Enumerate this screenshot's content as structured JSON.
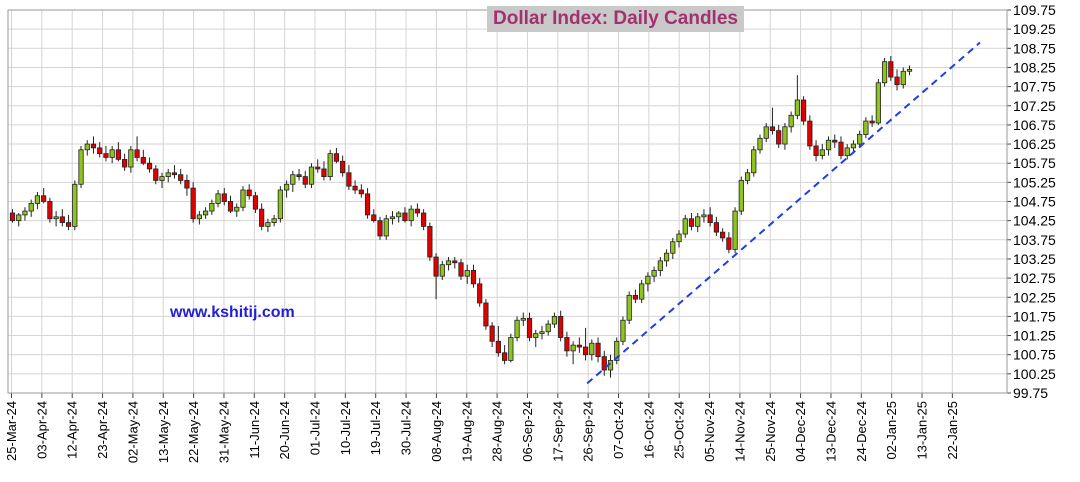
{
  "chart_data": {
    "type": "candlestick",
    "title": "Dollar Index: Daily Candles",
    "watermark": "www.kshitij.com",
    "xlabel": "",
    "ylabel": "",
    "ylim": [
      99.75,
      109.75
    ],
    "y_ticks": [
      "109.75",
      "109.25",
      "108.75",
      "108.25",
      "107.75",
      "107.25",
      "106.75",
      "106.25",
      "105.75",
      "105.25",
      "104.75",
      "104.25",
      "103.75",
      "103.25",
      "102.75",
      "102.25",
      "101.75",
      "101.25",
      "100.75",
      "100.25",
      "99.75"
    ],
    "x_ticks": [
      "25-Mar-24",
      "03-Apr-24",
      "12-Apr-24",
      "23-Apr-24",
      "02-May-24",
      "13-May-24",
      "22-May-24",
      "31-May-24",
      "11-Jun-24",
      "20-Jun-24",
      "01-Jul-24",
      "10-Jul-24",
      "19-Jul-24",
      "30-Jul-24",
      "08-Aug-24",
      "19-Aug-24",
      "28-Aug-24",
      "06-Sep-24",
      "17-Sep-24",
      "26-Sep-24",
      "07-Oct-24",
      "16-Oct-24",
      "25-Oct-24",
      "05-Nov-24",
      "14-Nov-24",
      "25-Nov-24",
      "04-Dec-24",
      "13-Dec-24",
      "24-Dec-24",
      "02-Jan-25",
      "13-Jan-25",
      "22-Jan-25"
    ],
    "grid": true,
    "colors": {
      "up": "#8fc31f",
      "down": "#e00000",
      "trendline": "#1f3fe0",
      "grid": "#d4d4d4",
      "title": "#a3316f",
      "title_bg": "#c9c9c9",
      "watermark": "#1f1fd6"
    },
    "trendline": {
      "style": "dashed",
      "start": [
        "26-Sep-24",
        100.0
      ],
      "end": [
        "09-Jan-25",
        108.9
      ]
    },
    "candles": [
      [
        104.45,
        104.55,
        104.2,
        104.25
      ],
      [
        104.25,
        104.45,
        104.1,
        104.4
      ],
      [
        104.4,
        104.6,
        104.25,
        104.5
      ],
      [
        104.5,
        104.8,
        104.35,
        104.7
      ],
      [
        104.7,
        105.0,
        104.55,
        104.9
      ],
      [
        104.9,
        105.1,
        104.7,
        104.75
      ],
      [
        104.75,
        104.85,
        104.2,
        104.3
      ],
      [
        104.3,
        104.5,
        104.1,
        104.35
      ],
      [
        104.35,
        104.55,
        104.1,
        104.2
      ],
      [
        104.2,
        104.4,
        104.0,
        104.1
      ],
      [
        104.1,
        105.3,
        104.0,
        105.2
      ],
      [
        105.2,
        106.2,
        105.1,
        106.1
      ],
      [
        106.1,
        106.35,
        105.95,
        106.25
      ],
      [
        106.25,
        106.45,
        106.0,
        106.15
      ],
      [
        106.15,
        106.3,
        105.9,
        106.0
      ],
      [
        106.0,
        106.2,
        105.8,
        105.9
      ],
      [
        105.9,
        106.2,
        105.75,
        106.1
      ],
      [
        106.1,
        106.3,
        105.8,
        105.85
      ],
      [
        105.85,
        106.0,
        105.55,
        105.65
      ],
      [
        105.65,
        106.2,
        105.5,
        106.1
      ],
      [
        106.1,
        106.45,
        105.8,
        105.9
      ],
      [
        105.9,
        106.1,
        105.7,
        105.75
      ],
      [
        105.75,
        105.9,
        105.5,
        105.6
      ],
      [
        105.6,
        105.7,
        105.2,
        105.3
      ],
      [
        105.3,
        105.5,
        105.1,
        105.4
      ],
      [
        105.4,
        105.6,
        105.25,
        105.5
      ],
      [
        105.5,
        105.7,
        105.35,
        105.45
      ],
      [
        105.45,
        105.6,
        105.2,
        105.3
      ],
      [
        105.3,
        105.45,
        104.9,
        105.1
      ],
      [
        105.1,
        105.25,
        104.2,
        104.3
      ],
      [
        104.3,
        104.5,
        104.15,
        104.4
      ],
      [
        104.4,
        104.6,
        104.3,
        104.5
      ],
      [
        104.5,
        104.8,
        104.4,
        104.7
      ],
      [
        104.7,
        105.05,
        104.6,
        104.95
      ],
      [
        104.95,
        105.1,
        104.65,
        104.75
      ],
      [
        104.75,
        104.9,
        104.45,
        104.5
      ],
      [
        104.5,
        104.7,
        104.35,
        104.6
      ],
      [
        104.6,
        105.15,
        104.5,
        105.05
      ],
      [
        105.05,
        105.2,
        104.8,
        104.9
      ],
      [
        104.9,
        105.0,
        104.45,
        104.55
      ],
      [
        104.55,
        104.7,
        104.0,
        104.1
      ],
      [
        104.1,
        104.3,
        103.95,
        104.2
      ],
      [
        104.2,
        104.4,
        104.1,
        104.3
      ],
      [
        104.3,
        105.15,
        104.2,
        105.05
      ],
      [
        105.05,
        105.3,
        104.85,
        105.2
      ],
      [
        105.2,
        105.55,
        105.0,
        105.45
      ],
      [
        105.45,
        105.6,
        105.3,
        105.4
      ],
      [
        105.4,
        105.55,
        105.1,
        105.2
      ],
      [
        105.2,
        105.75,
        105.1,
        105.65
      ],
      [
        105.65,
        105.85,
        105.5,
        105.6
      ],
      [
        105.6,
        105.8,
        105.3,
        105.4
      ],
      [
        105.4,
        106.1,
        105.3,
        106.0
      ],
      [
        106.0,
        106.15,
        105.75,
        105.8
      ],
      [
        105.8,
        105.95,
        105.4,
        105.5
      ],
      [
        105.5,
        105.7,
        105.05,
        105.15
      ],
      [
        105.15,
        105.3,
        104.95,
        105.05
      ],
      [
        105.05,
        105.2,
        104.85,
        104.95
      ],
      [
        104.95,
        105.1,
        104.3,
        104.4
      ],
      [
        104.4,
        104.55,
        104.2,
        104.25
      ],
      [
        104.25,
        104.35,
        103.75,
        103.85
      ],
      [
        103.85,
        104.4,
        103.75,
        104.3
      ],
      [
        104.3,
        104.5,
        104.15,
        104.35
      ],
      [
        104.35,
        104.5,
        104.2,
        104.45
      ],
      [
        104.45,
        104.6,
        104.2,
        104.25
      ],
      [
        104.25,
        104.65,
        104.1,
        104.55
      ],
      [
        104.55,
        104.7,
        104.35,
        104.45
      ],
      [
        104.45,
        104.55,
        104.0,
        104.1
      ],
      [
        104.1,
        104.2,
        103.2,
        103.3
      ],
      [
        103.3,
        103.4,
        102.2,
        102.8
      ],
      [
        102.8,
        103.2,
        102.7,
        103.1
      ],
      [
        103.1,
        103.3,
        102.95,
        103.2
      ],
      [
        103.2,
        103.3,
        103.0,
        103.15
      ],
      [
        103.15,
        103.25,
        102.7,
        102.8
      ],
      [
        102.8,
        103.1,
        102.6,
        102.95
      ],
      [
        102.95,
        103.1,
        102.5,
        102.6
      ],
      [
        102.6,
        102.75,
        102.0,
        102.1
      ],
      [
        102.1,
        102.2,
        101.4,
        101.5
      ],
      [
        101.5,
        101.6,
        100.95,
        101.1
      ],
      [
        101.1,
        101.5,
        100.7,
        100.8
      ],
      [
        100.8,
        101.0,
        100.5,
        100.6
      ],
      [
        100.6,
        101.3,
        100.55,
        101.2
      ],
      [
        101.2,
        101.75,
        101.1,
        101.65
      ],
      [
        101.65,
        101.85,
        101.5,
        101.7
      ],
      [
        101.7,
        101.85,
        101.1,
        101.2
      ],
      [
        101.2,
        101.4,
        100.95,
        101.3
      ],
      [
        101.3,
        101.5,
        101.15,
        101.35
      ],
      [
        101.35,
        101.65,
        101.25,
        101.55
      ],
      [
        101.55,
        101.85,
        101.45,
        101.75
      ],
      [
        101.75,
        101.9,
        101.1,
        101.2
      ],
      [
        101.2,
        101.35,
        100.7,
        100.85
      ],
      [
        100.85,
        101.1,
        100.5,
        101.0
      ],
      [
        101.0,
        101.2,
        100.8,
        100.95
      ],
      [
        100.95,
        101.45,
        100.6,
        100.75
      ],
      [
        100.75,
        101.15,
        100.6,
        101.05
      ],
      [
        101.05,
        101.2,
        100.55,
        100.7
      ],
      [
        100.7,
        100.85,
        100.2,
        100.35
      ],
      [
        100.35,
        100.75,
        100.15,
        100.6
      ],
      [
        100.6,
        101.2,
        100.5,
        101.1
      ],
      [
        101.1,
        101.75,
        101.0,
        101.65
      ],
      [
        101.65,
        102.4,
        101.55,
        102.3
      ],
      [
        102.3,
        102.45,
        102.1,
        102.2
      ],
      [
        102.2,
        102.7,
        102.1,
        102.6
      ],
      [
        102.6,
        102.9,
        102.4,
        102.8
      ],
      [
        102.8,
        103.05,
        102.65,
        102.95
      ],
      [
        102.95,
        103.3,
        102.8,
        103.2
      ],
      [
        103.2,
        103.5,
        103.05,
        103.4
      ],
      [
        103.4,
        103.8,
        103.25,
        103.7
      ],
      [
        103.7,
        104.0,
        103.55,
        103.9
      ],
      [
        103.9,
        104.4,
        103.8,
        104.3
      ],
      [
        104.3,
        104.45,
        104.0,
        104.1
      ],
      [
        104.1,
        104.45,
        103.95,
        104.35
      ],
      [
        104.35,
        104.55,
        104.2,
        104.4
      ],
      [
        104.4,
        104.6,
        104.1,
        104.2
      ],
      [
        104.2,
        104.35,
        103.85,
        103.95
      ],
      [
        103.95,
        104.05,
        103.7,
        103.8
      ],
      [
        103.8,
        103.95,
        103.4,
        103.5
      ],
      [
        103.5,
        104.6,
        103.4,
        104.5
      ],
      [
        104.5,
        105.4,
        104.4,
        105.3
      ],
      [
        105.3,
        105.6,
        105.2,
        105.5
      ],
      [
        105.5,
        106.2,
        105.4,
        106.1
      ],
      [
        106.1,
        106.5,
        106.0,
        106.4
      ],
      [
        106.4,
        106.8,
        106.3,
        106.7
      ],
      [
        106.7,
        107.2,
        106.5,
        106.6
      ],
      [
        106.6,
        106.75,
        106.15,
        106.25
      ],
      [
        106.25,
        106.8,
        106.1,
        106.7
      ],
      [
        106.7,
        107.1,
        106.55,
        107.0
      ],
      [
        107.0,
        108.05,
        106.9,
        107.4
      ],
      [
        107.4,
        107.5,
        106.75,
        106.85
      ],
      [
        106.85,
        107.0,
        106.1,
        106.2
      ],
      [
        106.2,
        106.35,
        105.8,
        105.95
      ],
      [
        105.95,
        106.25,
        105.85,
        106.1
      ],
      [
        106.1,
        106.45,
        105.95,
        106.35
      ],
      [
        106.35,
        106.5,
        106.15,
        106.3
      ],
      [
        106.3,
        106.45,
        105.85,
        105.95
      ],
      [
        105.95,
        106.25,
        105.85,
        106.15
      ],
      [
        106.15,
        106.35,
        106.0,
        106.25
      ],
      [
        106.25,
        106.6,
        106.15,
        106.5
      ],
      [
        106.5,
        106.95,
        106.4,
        106.85
      ],
      [
        106.85,
        107.0,
        106.7,
        106.8
      ],
      [
        106.8,
        107.95,
        106.75,
        107.85
      ],
      [
        107.85,
        108.5,
        107.75,
        108.4
      ],
      [
        108.4,
        108.55,
        107.9,
        108.0
      ],
      [
        108.0,
        108.2,
        107.65,
        107.8
      ],
      [
        107.8,
        108.25,
        107.7,
        108.15
      ],
      [
        108.15,
        108.3,
        108.05,
        108.2
      ]
    ]
  }
}
